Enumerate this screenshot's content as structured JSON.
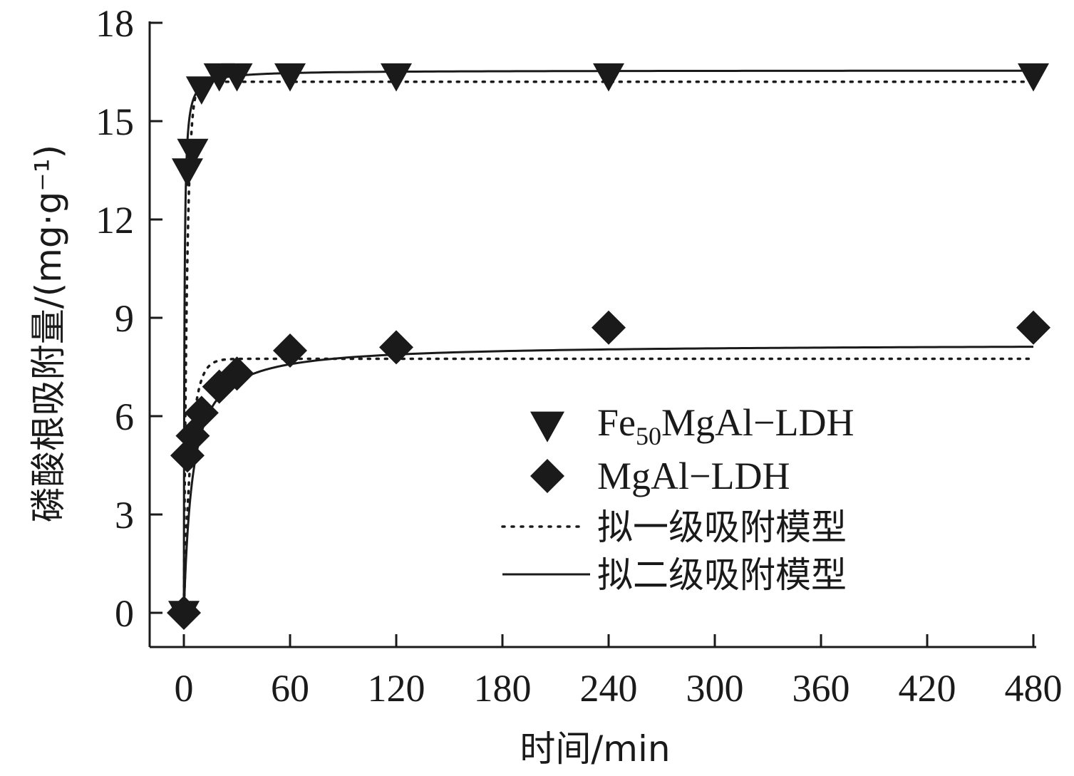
{
  "chart_data": {
    "type": "scatter",
    "xlabel": "时间/min",
    "ylabel": "磷酸根吸附量/(mg·g⁻¹)",
    "xlim": [
      -10,
      480
    ],
    "ylim": [
      -1,
      18
    ],
    "xticks": [
      0,
      60,
      120,
      180,
      240,
      300,
      360,
      420,
      480
    ],
    "yticks": [
      0,
      3,
      6,
      9,
      12,
      15,
      18
    ],
    "legend_position": "bottom-right",
    "series": [
      {
        "name": "Fe50MgAl-LDH",
        "name_main": "Fe",
        "name_sub": "50",
        "name_rest": "MgAl−LDH",
        "marker": "triangle-down",
        "x": [
          0,
          2,
          5,
          10,
          20,
          30,
          60,
          120,
          240,
          480
        ],
        "y": [
          0,
          13.5,
          14.1,
          16.0,
          16.4,
          16.4,
          16.4,
          16.4,
          16.4,
          16.4
        ]
      },
      {
        "name": "MgAl−LDH",
        "marker": "diamond",
        "x": [
          0,
          2,
          5,
          10,
          20,
          30,
          60,
          120,
          240,
          480
        ],
        "y": [
          0,
          4.8,
          5.4,
          6.1,
          6.9,
          7.3,
          8.0,
          8.1,
          8.7,
          8.7
        ]
      }
    ],
    "models": [
      {
        "name": "拟一级吸附模型",
        "style": "dotted",
        "curves": [
          {
            "qe": 16.2,
            "k": 0.55
          },
          {
            "qe": 7.75,
            "k": 0.25
          }
        ]
      },
      {
        "name": "拟二级吸附模型",
        "style": "solid",
        "curves": [
          {
            "qe": 16.55,
            "k": 0.2
          },
          {
            "qe": 8.2,
            "k": 0.025
          }
        ]
      }
    ],
    "colors": {
      "ink": "#1a1a1a",
      "background": "#ffffff"
    }
  }
}
